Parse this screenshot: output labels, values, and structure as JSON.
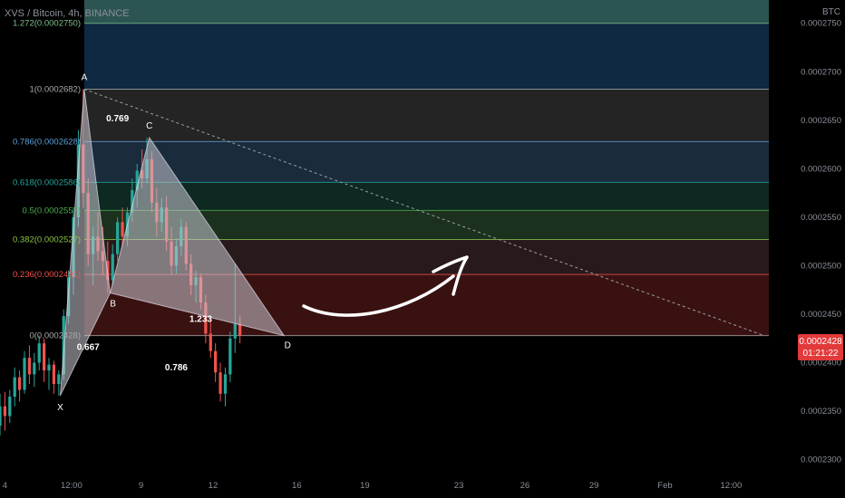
{
  "header": {
    "title": "XVS / Bitcoin, 4h, BINANCE"
  },
  "price_axis": {
    "unit": "BTC"
  },
  "last_price": {
    "value": "0.0002428",
    "countdown": "01:21:22",
    "color": "#e23a3a"
  },
  "chart_data": {
    "type": "candlestick",
    "title": "XVS / Bitcoin, 4h, BINANCE",
    "ylim": [
      0.00022885,
      0.0002774
    ],
    "y_ticks": [
      "0.0002750",
      "0.0002700",
      "0.0002650",
      "0.0002600",
      "0.0002550",
      "0.0002500",
      "0.0002450",
      "0.0002400",
      "0.0002350",
      "0.0002300"
    ],
    "y_tick_values": [
      0.000275,
      0.00027,
      0.000265,
      0.00026,
      0.000255,
      0.00025,
      0.000245,
      0.00024,
      0.000235,
      0.00023
    ],
    "x_ticks": [
      "4",
      "12:00",
      "9",
      "12",
      "16",
      "19",
      "23",
      "26",
      "29",
      "Feb",
      "12:00"
    ],
    "x_tick_values": [
      0,
      13.6,
      27.8,
      42.5,
      59.6,
      73.5,
      92.7,
      106.2,
      120.3,
      134.8,
      148.3
    ],
    "xlim": [
      -1,
      161
    ],
    "fib_levels": [
      {
        "ratio": "1.272",
        "label": "1.272(0.0002750)",
        "price": 0.000275,
        "color": "#7fbf8a",
        "fill": "#2e5a55"
      },
      {
        "ratio": "1",
        "label": "1(0.0002682)",
        "price": 0.0002682,
        "color": "#aaaaaa",
        "fill": "#0f2b44"
      },
      {
        "ratio": "0.786",
        "label": "0.786(0.0002628)",
        "price": 0.0002628,
        "color": "#5aa0d8",
        "fill": "#262626"
      },
      {
        "ratio": "0.618",
        "label": "0.618(0.0002586)",
        "price": 0.0002586,
        "color": "#26a69a",
        "fill": "#1b2d3f"
      },
      {
        "ratio": "0.5",
        "label": "0.5(0.0002557)",
        "price": 0.0002557,
        "color": "#4caf50",
        "fill": "#0f2a24"
      },
      {
        "ratio": "0.382",
        "label": "0.382(0.0002527)",
        "price": 0.0002527,
        "color": "#8bc34a",
        "fill": "#1c3420"
      },
      {
        "ratio": "0.236",
        "label": "0.236(0.0002491)",
        "price": 0.0002491,
        "color": "#ef5350",
        "fill": "#2a1b1b"
      },
      {
        "ratio": "0",
        "label": "0(0.0002428)",
        "price": 0.0002428,
        "color": "#aaaaaa",
        "fill": "#3d1212"
      }
    ],
    "pattern_points": [
      {
        "name": "X",
        "x": 11.3,
        "price": 0.0002366
      },
      {
        "name": "A",
        "x": 16.2,
        "price": 0.0002682
      },
      {
        "name": "B",
        "x": 21.5,
        "price": 0.0002472
      },
      {
        "name": "C",
        "x": 29.5,
        "price": 0.0002632
      },
      {
        "name": "D",
        "x": 57.0,
        "price": 0.0002428
      }
    ],
    "ratios": [
      {
        "text": "0.769",
        "x": 23.0,
        "price": 0.0002649
      },
      {
        "text": "0.667",
        "x": 17.0,
        "price": 0.0002413
      },
      {
        "text": "1.233",
        "x": 40.0,
        "price": 0.0002442
      },
      {
        "text": "0.786",
        "x": 35.0,
        "price": 0.0002392
      }
    ],
    "trend_line": {
      "from": {
        "x": 16.2,
        "price": 0.0002682
      },
      "to": {
        "x": 155.0,
        "price": 0.0002428
      }
    },
    "candles": [
      [
        -1,
        0.0002335,
        0.0002368,
        0.0002325,
        0.0002355
      ],
      [
        0,
        0.0002355,
        0.000237,
        0.000233,
        0.0002345
      ],
      [
        1,
        0.0002345,
        0.0002372,
        0.0002338,
        0.0002365
      ],
      [
        2,
        0.0002365,
        0.0002395,
        0.0002355,
        0.0002385
      ],
      [
        3,
        0.0002385,
        0.0002392,
        0.000236,
        0.0002372
      ],
      [
        4,
        0.0002372,
        0.0002412,
        0.0002368,
        0.0002405
      ],
      [
        5,
        0.0002405,
        0.0002418,
        0.0002378,
        0.0002388
      ],
      [
        6,
        0.0002388,
        0.000241,
        0.0002375,
        0.00024
      ],
      [
        7,
        0.00024,
        0.0002428,
        0.0002392,
        0.000242
      ],
      [
        8,
        0.000242,
        0.0002425,
        0.000238,
        0.0002392
      ],
      [
        9,
        0.0002392,
        0.0002405,
        0.0002372,
        0.0002398
      ],
      [
        10,
        0.0002398,
        0.0002402,
        0.0002368,
        0.0002378
      ],
      [
        11,
        0.0002378,
        0.0002392,
        0.0002366,
        0.0002388
      ],
      [
        12,
        0.0002388,
        0.0002455,
        0.0002382,
        0.0002448
      ],
      [
        13,
        0.0002448,
        0.0002495,
        0.000244,
        0.0002488
      ],
      [
        14,
        0.0002488,
        0.000256,
        0.000247,
        0.000255
      ],
      [
        15,
        0.000255,
        0.000264,
        0.000254,
        0.0002625
      ],
      [
        16,
        0.0002625,
        0.0002682,
        0.000256,
        0.0002575
      ],
      [
        17,
        0.0002575,
        0.000259,
        0.00025,
        0.0002512
      ],
      [
        18,
        0.0002512,
        0.000254,
        0.000248,
        0.000253
      ],
      [
        19,
        0.000253,
        0.0002555,
        0.0002505,
        0.0002515
      ],
      [
        20,
        0.0002515,
        0.000254,
        0.000249,
        0.0002505
      ],
      [
        21,
        0.0002505,
        0.0002525,
        0.0002472,
        0.0002485
      ],
      [
        22,
        0.0002485,
        0.0002522,
        0.000248,
        0.0002512
      ],
      [
        23,
        0.0002512,
        0.000255,
        0.0002505,
        0.0002545
      ],
      [
        24,
        0.0002545,
        0.000256,
        0.000252,
        0.000253
      ],
      [
        25,
        0.000253,
        0.000256,
        0.000252,
        0.0002555
      ],
      [
        26,
        0.0002555,
        0.000259,
        0.0002545,
        0.0002578
      ],
      [
        27,
        0.0002578,
        0.0002605,
        0.000256,
        0.0002598
      ],
      [
        28,
        0.0002598,
        0.000262,
        0.000258,
        0.000259
      ],
      [
        29,
        0.000259,
        0.0002632,
        0.0002585,
        0.000261
      ],
      [
        30,
        0.000261,
        0.0002618,
        0.0002555,
        0.0002565
      ],
      [
        31,
        0.0002565,
        0.000258,
        0.000253,
        0.0002545
      ],
      [
        32,
        0.0002545,
        0.000257,
        0.0002535,
        0.000256
      ],
      [
        33,
        0.000256,
        0.0002572,
        0.0002515,
        0.0002525
      ],
      [
        34,
        0.0002525,
        0.000254,
        0.000249,
        0.00025
      ],
      [
        35,
        0.00025,
        0.0002528,
        0.0002492,
        0.000252
      ],
      [
        36,
        0.000252,
        0.0002548,
        0.000251,
        0.000254
      ],
      [
        37,
        0.000254,
        0.0002545,
        0.0002495,
        0.0002502
      ],
      [
        38,
        0.0002502,
        0.0002512,
        0.000247,
        0.000248
      ],
      [
        39,
        0.000248,
        0.0002495,
        0.0002462,
        0.0002488
      ],
      [
        40,
        0.0002488,
        0.0002492,
        0.0002455,
        0.0002462
      ],
      [
        41,
        0.0002462,
        0.000247,
        0.000242,
        0.000243
      ],
      [
        42,
        0.000243,
        0.0002445,
        0.0002405,
        0.0002412
      ],
      [
        43,
        0.0002412,
        0.000242,
        0.000238,
        0.000239
      ],
      [
        44,
        0.000239,
        0.00024,
        0.000236,
        0.0002368
      ],
      [
        45,
        0.0002368,
        0.0002395,
        0.0002355,
        0.0002388
      ],
      [
        46,
        0.0002388,
        0.0002432,
        0.000238,
        0.0002425
      ],
      [
        47,
        0.0002425,
        0.0002502,
        0.000241,
        0.000244
      ],
      [
        48,
        0.000244,
        0.0002448,
        0.000242,
        0.0002428
      ]
    ]
  }
}
